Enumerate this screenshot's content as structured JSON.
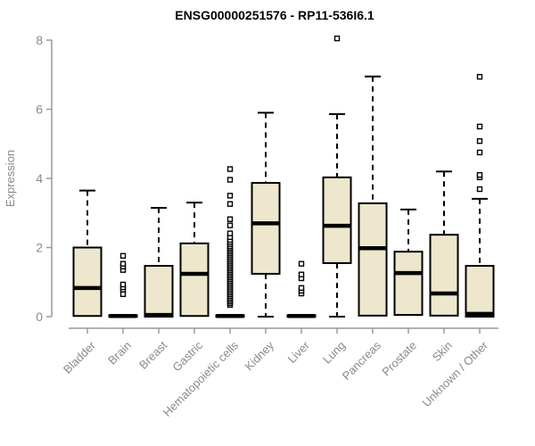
{
  "chart_data": {
    "type": "boxplot",
    "title": "ENSG00000251576 - RP11-536I6.1",
    "ylabel": "Expression",
    "xlabel": "",
    "ylim": [
      0,
      8
    ],
    "yticks": [
      0,
      2,
      4,
      6,
      8
    ],
    "grid": false,
    "legend": null,
    "categories": [
      "Bladder",
      "Brain",
      "Breast",
      "Gastric",
      "Hematopoietic cells",
      "Kidney",
      "Liver",
      "Lung",
      "Pancreas",
      "Prostate",
      "Skin",
      "Unknown / Other"
    ],
    "boxes": [
      {
        "category": "Bladder",
        "whisker_low": 0.02,
        "q1": 0.02,
        "median": 0.83,
        "q3": 2.0,
        "whisker_high": 3.65,
        "outliers": []
      },
      {
        "category": "Brain",
        "whisker_low": 0,
        "q1": 0,
        "median": 0.02,
        "q3": 0.04,
        "whisker_high": 0.05,
        "outliers": [
          0.65,
          0.78,
          0.85,
          0.93,
          1.35,
          1.45,
          1.53,
          1.76
        ]
      },
      {
        "category": "Breast",
        "whisker_low": 0,
        "q1": 0,
        "median": 0.05,
        "q3": 1.47,
        "whisker_high": 3.15,
        "outliers": []
      },
      {
        "category": "Gastric",
        "whisker_low": 0.02,
        "q1": 0.02,
        "median": 1.24,
        "q3": 2.12,
        "whisker_high": 3.3,
        "outliers": []
      },
      {
        "category": "Hematopoietic cells",
        "whisker_low": 0,
        "q1": 0,
        "median": 0.02,
        "q3": 0.04,
        "whisker_high": 0.05,
        "outliers": [
          0.34,
          0.39,
          0.44,
          0.49,
          0.54,
          0.59,
          0.64,
          0.69,
          0.74,
          0.79,
          0.84,
          0.89,
          0.94,
          0.99,
          1.04,
          1.09,
          1.14,
          1.19,
          1.24,
          1.29,
          1.34,
          1.39,
          1.44,
          1.49,
          1.54,
          1.59,
          1.64,
          1.69,
          1.74,
          1.79,
          1.84,
          1.89,
          1.94,
          1.99,
          2.04,
          2.1,
          2.16,
          2.22,
          2.3,
          2.41,
          2.64,
          2.82,
          3.26,
          3.5,
          3.96,
          4.27
        ]
      },
      {
        "category": "Kidney",
        "whisker_low": 0,
        "q1": 1.24,
        "median": 2.7,
        "q3": 3.87,
        "whisker_high": 5.9,
        "outliers": []
      },
      {
        "category": "Liver",
        "whisker_low": 0,
        "q1": 0,
        "median": 0.02,
        "q3": 0.04,
        "whisker_high": 0.05,
        "outliers": [
          0.67,
          0.75,
          0.83,
          1.11,
          1.22,
          1.53
        ]
      },
      {
        "category": "Lung",
        "whisker_low": 0,
        "q1": 1.55,
        "median": 2.63,
        "q3": 4.03,
        "whisker_high": 5.86,
        "outliers": [
          8.05
        ]
      },
      {
        "category": "Pancreas",
        "whisker_low": 0.03,
        "q1": 0.03,
        "median": 1.98,
        "q3": 3.28,
        "whisker_high": 6.95,
        "outliers": []
      },
      {
        "category": "Prostate",
        "whisker_low": 0.05,
        "q1": 0.05,
        "median": 1.26,
        "q3": 1.88,
        "whisker_high": 3.1,
        "outliers": []
      },
      {
        "category": "Skin",
        "whisker_low": 0.03,
        "q1": 0.03,
        "median": 0.67,
        "q3": 2.37,
        "whisker_high": 4.2,
        "outliers": []
      },
      {
        "category": "Unknown / Other",
        "whisker_low": 0,
        "q1": 0,
        "median": 0.08,
        "q3": 1.47,
        "whisker_high": 3.41,
        "outliers": [
          3.69,
          4.03,
          4.1,
          4.75,
          5.08,
          5.5,
          6.94
        ]
      }
    ],
    "colors": {
      "box_fill": "#EEE7CD",
      "box_border": "#000000",
      "median": "#000000",
      "whisker": "#000000",
      "outlier_stroke": "#000000",
      "outlier_fill": "#FFFFFF",
      "axis_line": "#9A9A9A",
      "axis_text": "#8A8A8A",
      "title_color": "#000000",
      "background": "#FFFFFF"
    }
  }
}
